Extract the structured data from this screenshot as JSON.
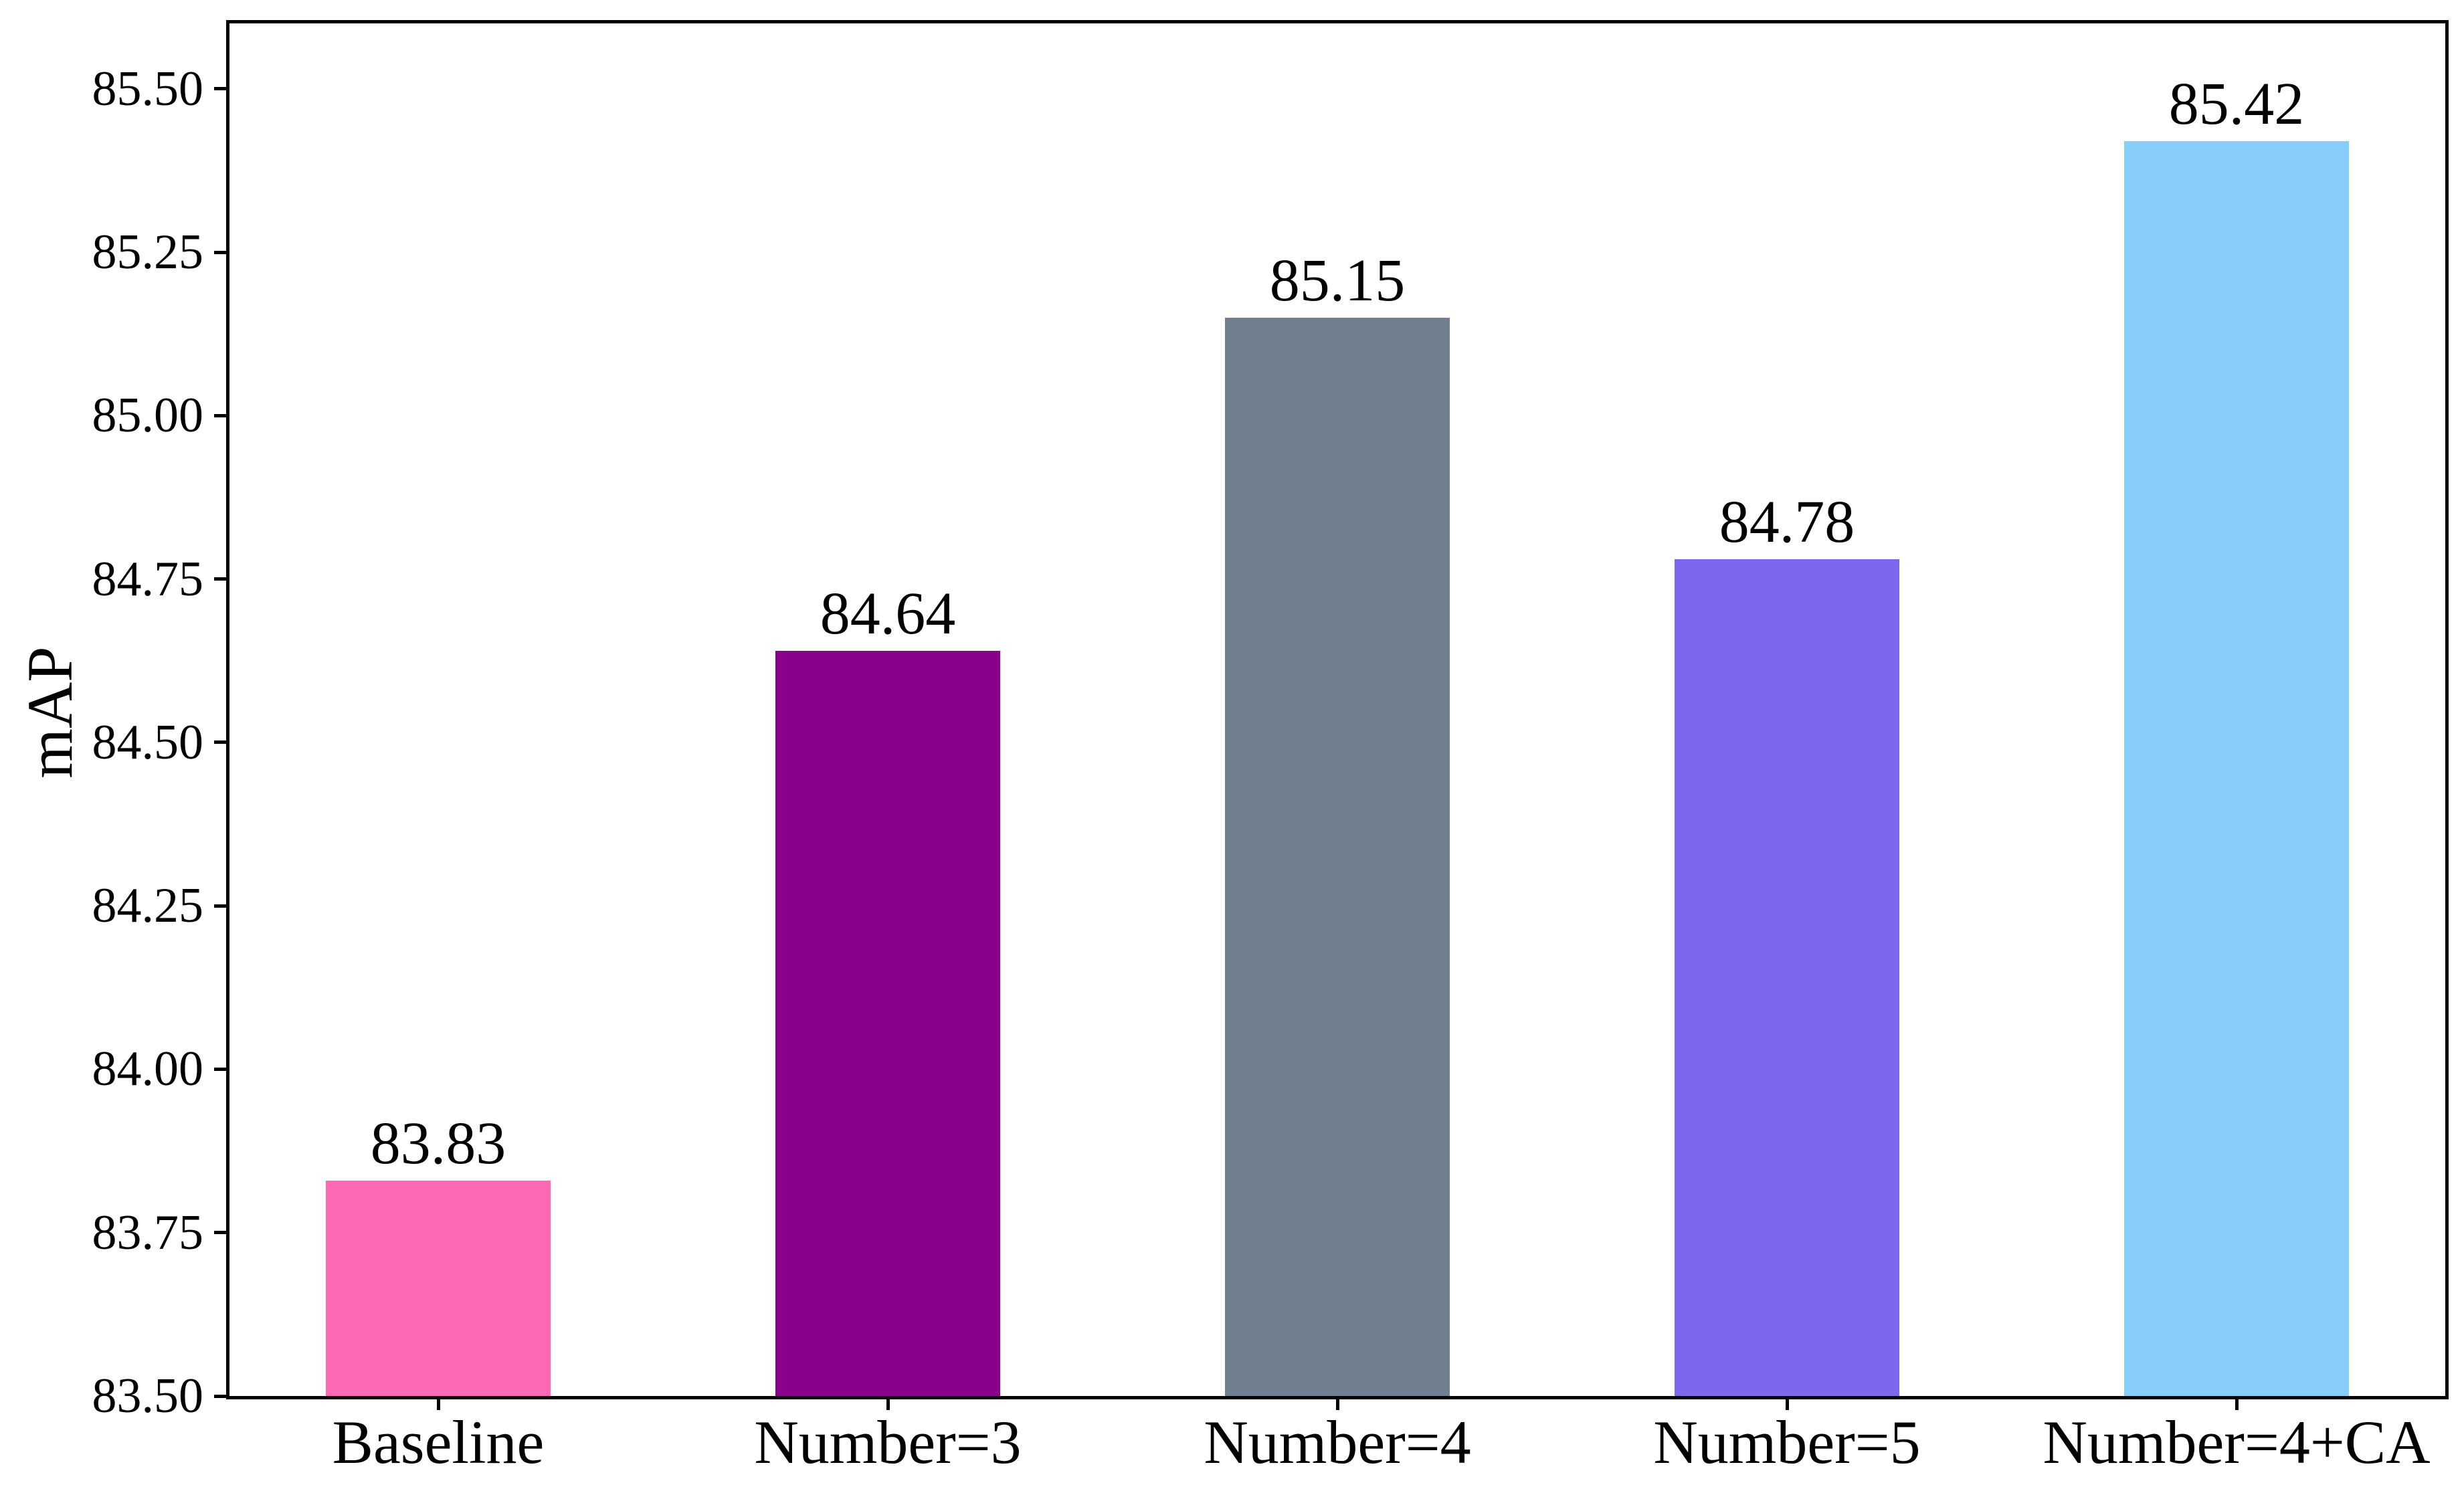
{
  "chart_data": {
    "type": "bar",
    "title": "",
    "xlabel": "",
    "ylabel": "mAP",
    "categories": [
      "Baseline",
      "Number=3",
      "Number=4",
      "Number=5",
      "Number=4+CA"
    ],
    "values": [
      83.83,
      84.64,
      85.15,
      84.78,
      85.42
    ],
    "bar_labels": [
      "83.83",
      "84.64",
      "85.15",
      "84.78",
      "85.42"
    ],
    "colors": [
      "#FF69B4",
      "#8B008B",
      "#708090",
      "#7B68EE",
      "#87CEFA"
    ],
    "yticks": [
      "83.50",
      "83.75",
      "84.00",
      "84.25",
      "84.50",
      "84.75",
      "85.00",
      "85.25",
      "85.50"
    ],
    "ylim": [
      83.5,
      85.6
    ],
    "grid": false,
    "legend": null,
    "axis_color": "#000000",
    "background_color": "#ffffff"
  }
}
